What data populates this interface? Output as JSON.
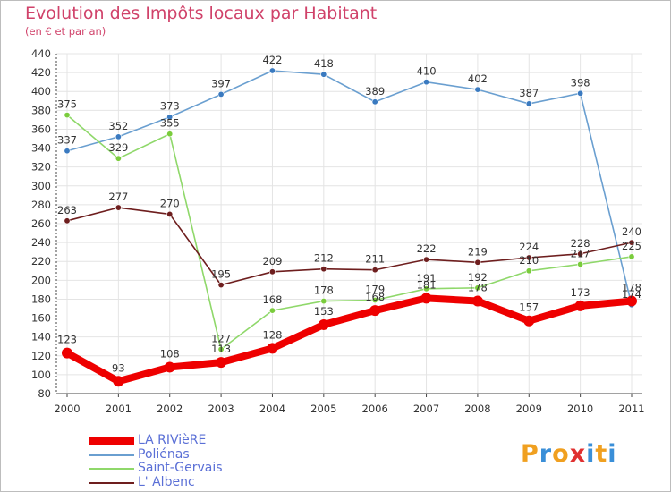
{
  "title": "Evolution des Impôts locaux par Habitant",
  "subtitle": "(en € et par an)",
  "logo": {
    "text": "Proxiti",
    "letters": [
      "P",
      "r",
      "o",
      "x",
      "i",
      "t",
      "i"
    ],
    "colors": [
      "#f0a020",
      "#3a8fd8",
      "#f0a020",
      "#e03030",
      "#3a8fd8",
      "#f0a020",
      "#3a8fd8"
    ]
  },
  "chart_data": {
    "type": "line",
    "title": "Evolution des Impôts locaux par Habitant",
    "subtitle": "(en € et par an)",
    "xlabel": "",
    "ylabel": "",
    "categories": [
      "2000",
      "2001",
      "2002",
      "2003",
      "2004",
      "2005",
      "2006",
      "2007",
      "2008",
      "2009",
      "2010",
      "2011"
    ],
    "ylim": [
      80,
      440
    ],
    "yticks": [
      80,
      100,
      120,
      140,
      160,
      180,
      200,
      220,
      240,
      260,
      280,
      300,
      320,
      340,
      360,
      380,
      400,
      420,
      440
    ],
    "grid": true,
    "legend_position": "bottom-left",
    "series": [
      {
        "name": "Poliénas",
        "color": "#6a9fd0",
        "marker": "#3a7ac0",
        "values": [
          337,
          352,
          373,
          397,
          422,
          418,
          389,
          410,
          402,
          387,
          398,
          174
        ],
        "labels": [
          "337",
          "352",
          "373",
          "397",
          "422",
          "418",
          "389",
          "410",
          "402",
          "387",
          "398",
          "174"
        ]
      },
      {
        "name": "Saint-Gervais",
        "color": "#8fd86a",
        "marker": "#7acc3c",
        "values": [
          375,
          329,
          355,
          127,
          168,
          178,
          179,
          191,
          192,
          210,
          217,
          225
        ],
        "labels": [
          "375",
          "329",
          "355",
          "127",
          "168",
          "178",
          "179",
          "191",
          "192",
          "210",
          "217",
          "225"
        ]
      },
      {
        "name": "L' Albenc",
        "color": "#6e1e1e",
        "marker": "#6e1e1e",
        "values": [
          263,
          277,
          270,
          195,
          209,
          212,
          211,
          222,
          219,
          224,
          228,
          240
        ],
        "labels": [
          "263",
          "277",
          "270",
          "195",
          "209",
          "212",
          "211",
          "222",
          "219",
          "224",
          "228",
          "240"
        ]
      },
      {
        "name": "LA RIVièRE",
        "color": "#ee0000",
        "marker": "#ee0000",
        "thick": true,
        "values": [
          123,
          93,
          108,
          113,
          128,
          153,
          168,
          181,
          178,
          157,
          173,
          178
        ],
        "labels": [
          "123",
          "93",
          "108",
          "113",
          "128",
          "153",
          "168",
          "181",
          "178",
          "157",
          "173",
          "178"
        ]
      }
    ],
    "legend": [
      "LA RIVièRE",
      "Poliénas",
      "Saint-Gervais",
      "L' Albenc"
    ]
  }
}
